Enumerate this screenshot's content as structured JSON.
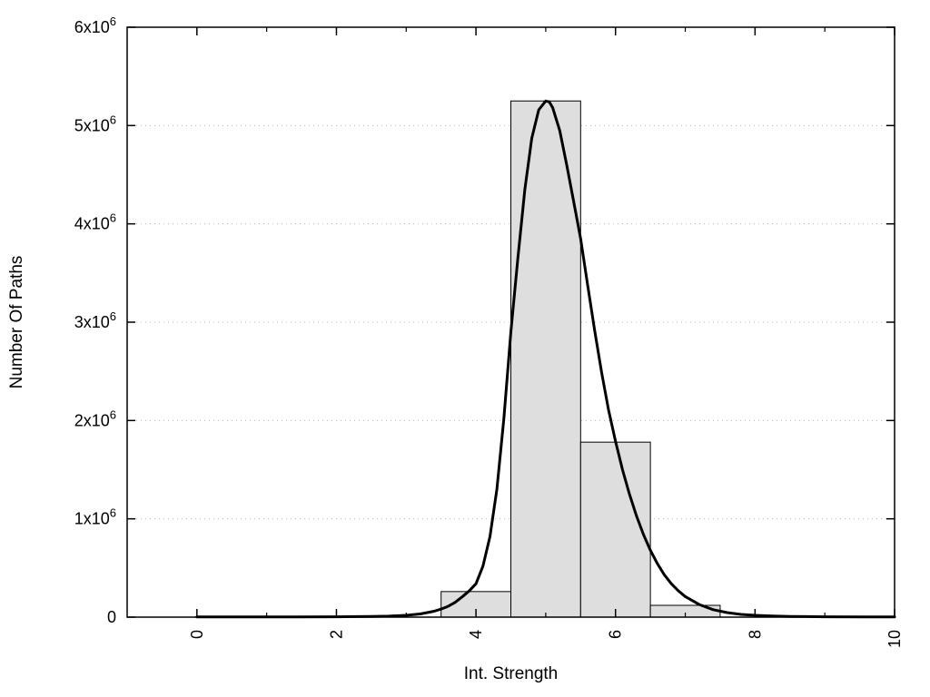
{
  "chart_data": {
    "type": "bar",
    "subtype": "histogram-with-density-curve",
    "title": "",
    "xlabel": "Int. Strength",
    "ylabel": "Number Of Paths",
    "xlim": [
      -1,
      10
    ],
    "ylim": [
      0,
      6000000
    ],
    "grid": "horizontal-dotted",
    "legend": "none",
    "x_major_ticks": [
      {
        "value": 0,
        "label": "0"
      },
      {
        "value": 2,
        "label": "2"
      },
      {
        "value": 4,
        "label": "4"
      },
      {
        "value": 6,
        "label": "6"
      },
      {
        "value": 8,
        "label": "8"
      },
      {
        "value": 10,
        "label": "10"
      }
    ],
    "x_minor_ticks": [
      1,
      3,
      5,
      7,
      9
    ],
    "x_tick_label_rotation": -90,
    "y_ticks": [
      {
        "value": 0,
        "base": "0",
        "exp": ""
      },
      {
        "value": 1000000,
        "base": "1x10",
        "exp": "6"
      },
      {
        "value": 2000000,
        "base": "2x10",
        "exp": "6"
      },
      {
        "value": 3000000,
        "base": "3x10",
        "exp": "6"
      },
      {
        "value": 4000000,
        "base": "4x10",
        "exp": "6"
      },
      {
        "value": 5000000,
        "base": "5x10",
        "exp": "6"
      },
      {
        "value": 6000000,
        "base": "6x10",
        "exp": "6"
      }
    ],
    "bars": [
      {
        "x0": 3.5,
        "x1": 4.5,
        "y": 260000
      },
      {
        "x0": 4.5,
        "x1": 5.5,
        "y": 5250000
      },
      {
        "x0": 5.5,
        "x1": 6.5,
        "y": 1780000
      },
      {
        "x0": 6.5,
        "x1": 7.5,
        "y": 120000
      }
    ],
    "curve_points": [
      [
        0,
        2000
      ],
      [
        0.5,
        2000
      ],
      [
        1.0,
        2000
      ],
      [
        1.5,
        3000
      ],
      [
        2.0,
        4000
      ],
      [
        2.5,
        7000
      ],
      [
        2.75,
        10000
      ],
      [
        3.0,
        18000
      ],
      [
        3.2,
        32000
      ],
      [
        3.4,
        60000
      ],
      [
        3.5,
        82000
      ],
      [
        3.6,
        110000
      ],
      [
        3.7,
        150000
      ],
      [
        3.8,
        205000
      ],
      [
        3.9,
        265000
      ],
      [
        4.0,
        340000
      ],
      [
        4.1,
        520000
      ],
      [
        4.2,
        820000
      ],
      [
        4.3,
        1300000
      ],
      [
        4.4,
        2020000
      ],
      [
        4.5,
        2900000
      ],
      [
        4.6,
        3650000
      ],
      [
        4.7,
        4350000
      ],
      [
        4.8,
        4870000
      ],
      [
        4.9,
        5160000
      ],
      [
        5.0,
        5250000
      ],
      [
        5.05,
        5240000
      ],
      [
        5.1,
        5180000
      ],
      [
        5.2,
        4950000
      ],
      [
        5.3,
        4600000
      ],
      [
        5.4,
        4230000
      ],
      [
        5.5,
        3850000
      ],
      [
        5.6,
        3380000
      ],
      [
        5.7,
        2920000
      ],
      [
        5.8,
        2490000
      ],
      [
        5.9,
        2110000
      ],
      [
        6.0,
        1790000
      ],
      [
        6.1,
        1500000
      ],
      [
        6.2,
        1250000
      ],
      [
        6.3,
        1030000
      ],
      [
        6.4,
        840000
      ],
      [
        6.5,
        680000
      ],
      [
        6.6,
        545000
      ],
      [
        6.7,
        430000
      ],
      [
        6.8,
        340000
      ],
      [
        6.9,
        268000
      ],
      [
        7.0,
        210000
      ],
      [
        7.2,
        128000
      ],
      [
        7.4,
        76000
      ],
      [
        7.6,
        46000
      ],
      [
        7.8,
        28000
      ],
      [
        8.0,
        18000
      ],
      [
        8.25,
        11000
      ],
      [
        8.5,
        7000
      ],
      [
        9.0,
        3500
      ],
      [
        9.5,
        2000
      ],
      [
        10.0,
        1500
      ]
    ],
    "colors": {
      "background": "#ffffff",
      "bar_fill": "#dedede",
      "bar_stroke": "#000000",
      "curve": "#000000",
      "grid": "#b8b8b8",
      "axis": "#000000",
      "text": "#000000"
    }
  }
}
